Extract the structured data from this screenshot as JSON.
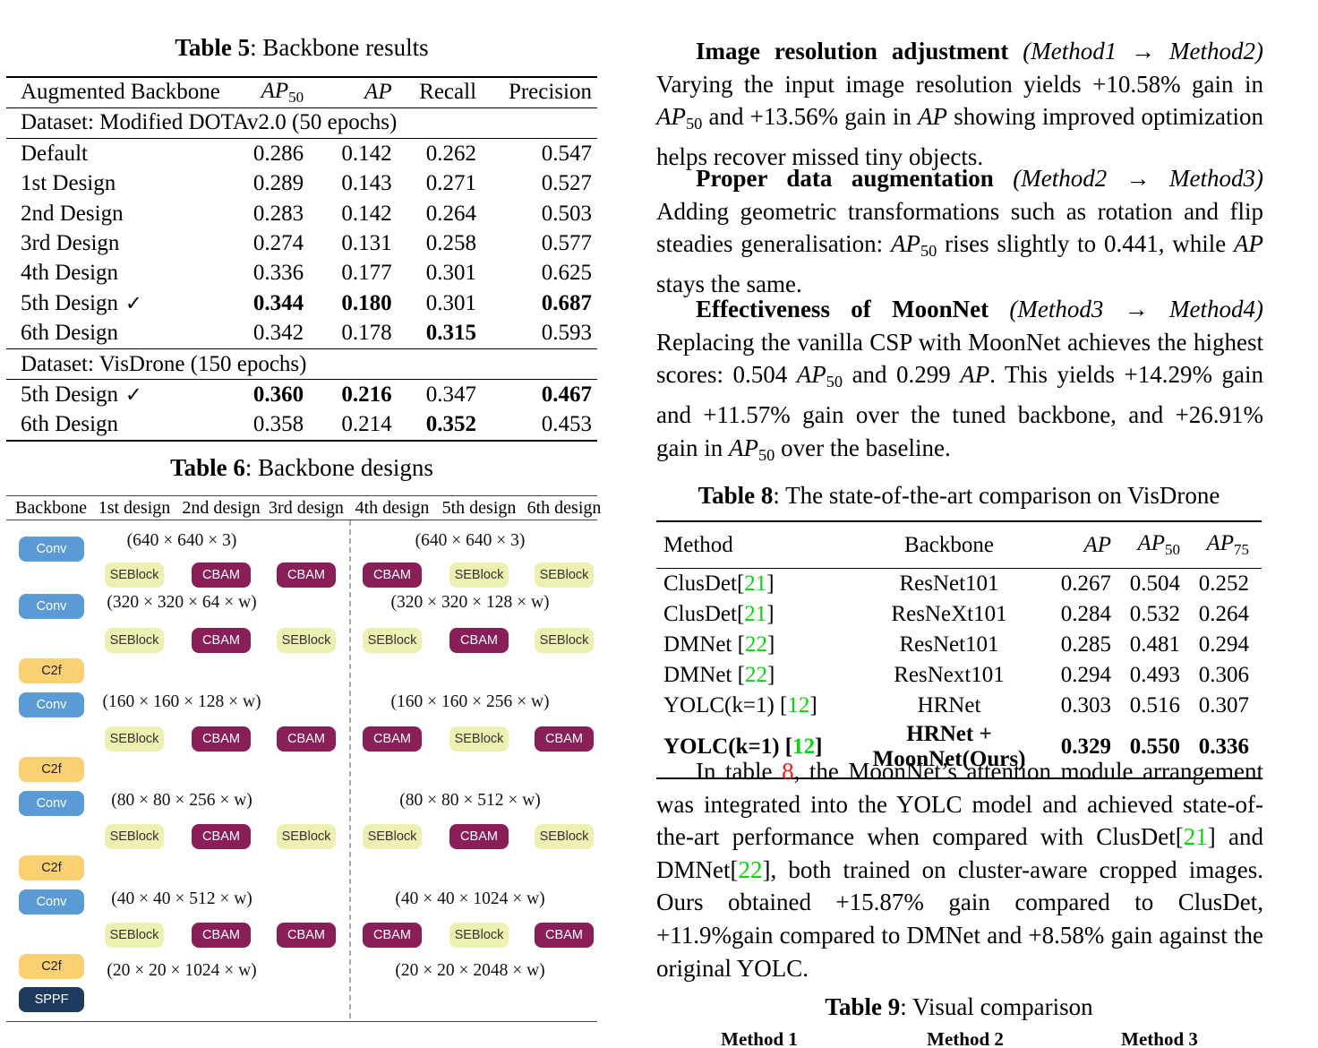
{
  "table5": {
    "caption": {
      "label": "Table 5",
      "rest": ": Backbone results"
    },
    "headers": [
      [
        {
          "t": "Augmented Backbone"
        }
      ],
      [
        {
          "t": "AP",
          "c": "m"
        },
        {
          "t": "50",
          "c": "sub"
        }
      ],
      [
        {
          "t": "AP",
          "c": "m"
        }
      ],
      [
        {
          "t": "Recall"
        }
      ],
      [
        {
          "t": "Precision"
        }
      ]
    ],
    "check_glyph": "✓",
    "sections": [
      {
        "title": "Dataset: Modified DOTAv2.0 (50 epochs)",
        "rows": [
          {
            "name": "Default",
            "check": false,
            "values": [
              "0.286",
              "0.142",
              "0.262",
              "0.547"
            ],
            "bold": [
              false,
              false,
              false,
              false
            ]
          },
          {
            "name": "1st Design",
            "check": false,
            "values": [
              "0.289",
              "0.143",
              "0.271",
              "0.527"
            ],
            "bold": [
              false,
              false,
              false,
              false
            ]
          },
          {
            "name": "2nd Design",
            "check": false,
            "values": [
              "0.283",
              "0.142",
              "0.264",
              "0.503"
            ],
            "bold": [
              false,
              false,
              false,
              false
            ]
          },
          {
            "name": "3rd Design",
            "check": false,
            "values": [
              "0.274",
              "0.131",
              "0.258",
              "0.577"
            ],
            "bold": [
              false,
              false,
              false,
              false
            ]
          },
          {
            "name": "4th Design",
            "check": false,
            "values": [
              "0.336",
              "0.177",
              "0.301",
              "0.625"
            ],
            "bold": [
              false,
              false,
              false,
              false
            ]
          },
          {
            "name": "5th Design",
            "check": true,
            "values": [
              "0.344",
              "0.180",
              "0.301",
              "0.687"
            ],
            "bold": [
              true,
              true,
              false,
              true
            ]
          },
          {
            "name": "6th Design",
            "check": false,
            "values": [
              "0.342",
              "0.178",
              "0.315",
              "0.593"
            ],
            "bold": [
              false,
              false,
              true,
              false
            ]
          }
        ]
      },
      {
        "title": "Dataset: VisDrone (150 epochs)",
        "rows": [
          {
            "name": "5th Design",
            "check": true,
            "values": [
              "0.360",
              "0.216",
              "0.347",
              "0.467"
            ],
            "bold": [
              true,
              true,
              false,
              true
            ]
          },
          {
            "name": "6th Design",
            "check": false,
            "values": [
              "0.358",
              "0.214",
              "0.352",
              "0.453"
            ],
            "bold": [
              false,
              false,
              true,
              false
            ]
          }
        ]
      }
    ]
  },
  "table6": {
    "caption": {
      "label": "Table 6",
      "rest": ": Backbone designs"
    },
    "headers": [
      "Backbone",
      "1st design",
      "2nd design",
      "3rd design",
      "4th design",
      "5th design",
      "6th design"
    ],
    "backbone_sequence": [
      "Conv",
      "Conv",
      "C2f",
      "Conv",
      "C2f",
      "Conv",
      "C2f",
      "Conv",
      "C2f",
      "SPPF"
    ],
    "dims": [
      {
        "left": "(640 × 640 × 3)",
        "right": "(640 × 640 × 3)"
      },
      {
        "left": "(320 × 320 × 64 × w)",
        "right": "(320 × 320 × 128 × w)"
      },
      {
        "left": "(160 × 160 × 128 × w)",
        "right": "(160 × 160 × 256 × w)"
      },
      {
        "left": "(80 × 80 × 256 × w)",
        "right": "(80 × 80 × 512 × w)"
      },
      {
        "left": "(40 × 40 × 512 × w)",
        "right": "(40 × 40 × 1024 × w)"
      },
      {
        "left": "(20 × 20 × 1024 × w)",
        "right": "(20 × 20 × 2048 × w)"
      }
    ],
    "attention_rows": [
      [
        "SEBlock",
        "CBAM",
        "CBAM",
        "CBAM",
        "SEBlock",
        "SEBlock"
      ],
      [
        "SEBlock",
        "CBAM",
        "SEBlock",
        "SEBlock",
        "CBAM",
        "SEBlock"
      ],
      [
        "SEBlock",
        "CBAM",
        "CBAM",
        "CBAM",
        "SEBlock",
        "CBAM"
      ],
      [
        "SEBlock",
        "CBAM",
        "SEBlock",
        "SEBlock",
        "CBAM",
        "SEBlock"
      ],
      [
        "SEBlock",
        "CBAM",
        "CBAM",
        "CBAM",
        "SEBlock",
        "CBAM"
      ]
    ],
    "colors": {
      "conv": "#5b9bd5",
      "c2f": "#f9d173",
      "sppf": "#1f3a5f",
      "seblock": "#ecf1b2",
      "cbam": "#8a1f58"
    }
  },
  "paragraphs": [
    {
      "segments": [
        {
          "t": "Image resolution adjustment",
          "c": "b"
        },
        {
          "t": " "
        },
        {
          "t": "(Method1 → Method2)",
          "c": "i"
        },
        {
          "t": " Varying the input image resolution yields +10.58% gain in "
        },
        {
          "t": "AP",
          "c": "m"
        },
        {
          "t": "50",
          "c": "sub"
        },
        {
          "t": " and +13.56% gain in "
        },
        {
          "t": "AP",
          "c": "m"
        },
        {
          "t": " showing improved optimization helps recover missed tiny objects."
        }
      ]
    },
    {
      "segments": [
        {
          "t": "Proper data augmentation",
          "c": "b"
        },
        {
          "t": " "
        },
        {
          "t": "(Method2 → Method3)",
          "c": "i"
        },
        {
          "t": " Adding geometric transformations such as rotation and flip steadies generalisation: "
        },
        {
          "t": "AP",
          "c": "m"
        },
        {
          "t": "50",
          "c": "sub"
        },
        {
          "t": " rises slightly to 0.441, while "
        },
        {
          "t": "AP",
          "c": "m"
        },
        {
          "t": " stays the same."
        }
      ]
    },
    {
      "segments": [
        {
          "t": "Effectiveness of MoonNet",
          "c": "b"
        },
        {
          "t": " "
        },
        {
          "t": "(Method3 → Method4)",
          "c": "i"
        },
        {
          "t": " Replacing the vanilla CSP with MoonNet achieves the highest scores: 0.504 "
        },
        {
          "t": "AP",
          "c": "m"
        },
        {
          "t": "50",
          "c": "sub"
        },
        {
          "t": " and 0.299 "
        },
        {
          "t": "AP",
          "c": "m"
        },
        {
          "t": ". This yields +14.29% gain and +11.57% gain over the tuned backbone, and +26.91% gain in "
        },
        {
          "t": "AP",
          "c": "m"
        },
        {
          "t": "50",
          "c": "sub"
        },
        {
          "t": " over the baseline."
        }
      ]
    }
  ],
  "table8": {
    "caption": {
      "label": "Table 8",
      "rest": ": The state-of-the-art comparison on VisDrone"
    },
    "headers": [
      [
        {
          "t": "Method"
        }
      ],
      [
        {
          "t": "Backbone"
        }
      ],
      [
        {
          "t": "AP",
          "c": "m"
        }
      ],
      [
        {
          "t": "AP",
          "c": "m"
        },
        {
          "t": "50",
          "c": "sub"
        }
      ],
      [
        {
          "t": "AP",
          "c": "m"
        },
        {
          "t": "75",
          "c": "sub"
        }
      ]
    ],
    "rows": [
      {
        "method": [
          {
            "t": "ClusDet["
          },
          {
            "t": "21",
            "c": "g"
          },
          {
            "t": "]"
          }
        ],
        "backbone": "ResNet101",
        "values": [
          "0.267",
          "0.504",
          "0.252"
        ],
        "bold": false
      },
      {
        "method": [
          {
            "t": "ClusDet["
          },
          {
            "t": "21",
            "c": "g"
          },
          {
            "t": "]"
          }
        ],
        "backbone": "ResNeXt101",
        "values": [
          "0.284",
          "0.532",
          "0.264"
        ],
        "bold": false
      },
      {
        "method": [
          {
            "t": "DMNet ["
          },
          {
            "t": "22",
            "c": "g"
          },
          {
            "t": "]"
          }
        ],
        "backbone": "ResNet101",
        "values": [
          "0.285",
          "0.481",
          "0.294"
        ],
        "bold": false
      },
      {
        "method": [
          {
            "t": "DMNet ["
          },
          {
            "t": "22",
            "c": "g"
          },
          {
            "t": "]"
          }
        ],
        "backbone": "ResNext101",
        "values": [
          "0.294",
          "0.493",
          "0.306"
        ],
        "bold": false
      },
      {
        "method": [
          {
            "t": "YOLC(k=1) ["
          },
          {
            "t": "12",
            "c": "g"
          },
          {
            "t": "]"
          }
        ],
        "backbone": "HRNet",
        "values": [
          "0.303",
          "0.516",
          "0.307"
        ],
        "bold": false
      },
      {
        "method": [
          {
            "t": "YOLC(k=1) ["
          },
          {
            "t": "12",
            "c": "g"
          },
          {
            "t": "]"
          }
        ],
        "backbone": "HRNet + MoonNet(Ours)",
        "values": [
          "0.329",
          "0.550",
          "0.336"
        ],
        "bold": true
      }
    ]
  },
  "paragraph4": {
    "segments": [
      {
        "t": "In table "
      },
      {
        "t": "8",
        "c": "r"
      },
      {
        "t": ", the MoonNet’s attention module arrangement was integrated into the YOLC model and achieved state-of-the-art performance when compared with ClusDet["
      },
      {
        "t": "21",
        "c": "g"
      },
      {
        "t": "] and DMNet["
      },
      {
        "t": "22",
        "c": "g"
      },
      {
        "t": "], both trained on cluster-aware cropped images. Ours obtained +15.87% gain compared to ClusDet, +11.9%gain compared to DMNet and +8.58% gain against the original YOLC."
      }
    ]
  },
  "table9": {
    "caption": {
      "label": "Table 9",
      "rest": ": Visual comparison"
    },
    "methods": [
      "Method 1",
      "Method 2",
      "Method 3"
    ]
  }
}
